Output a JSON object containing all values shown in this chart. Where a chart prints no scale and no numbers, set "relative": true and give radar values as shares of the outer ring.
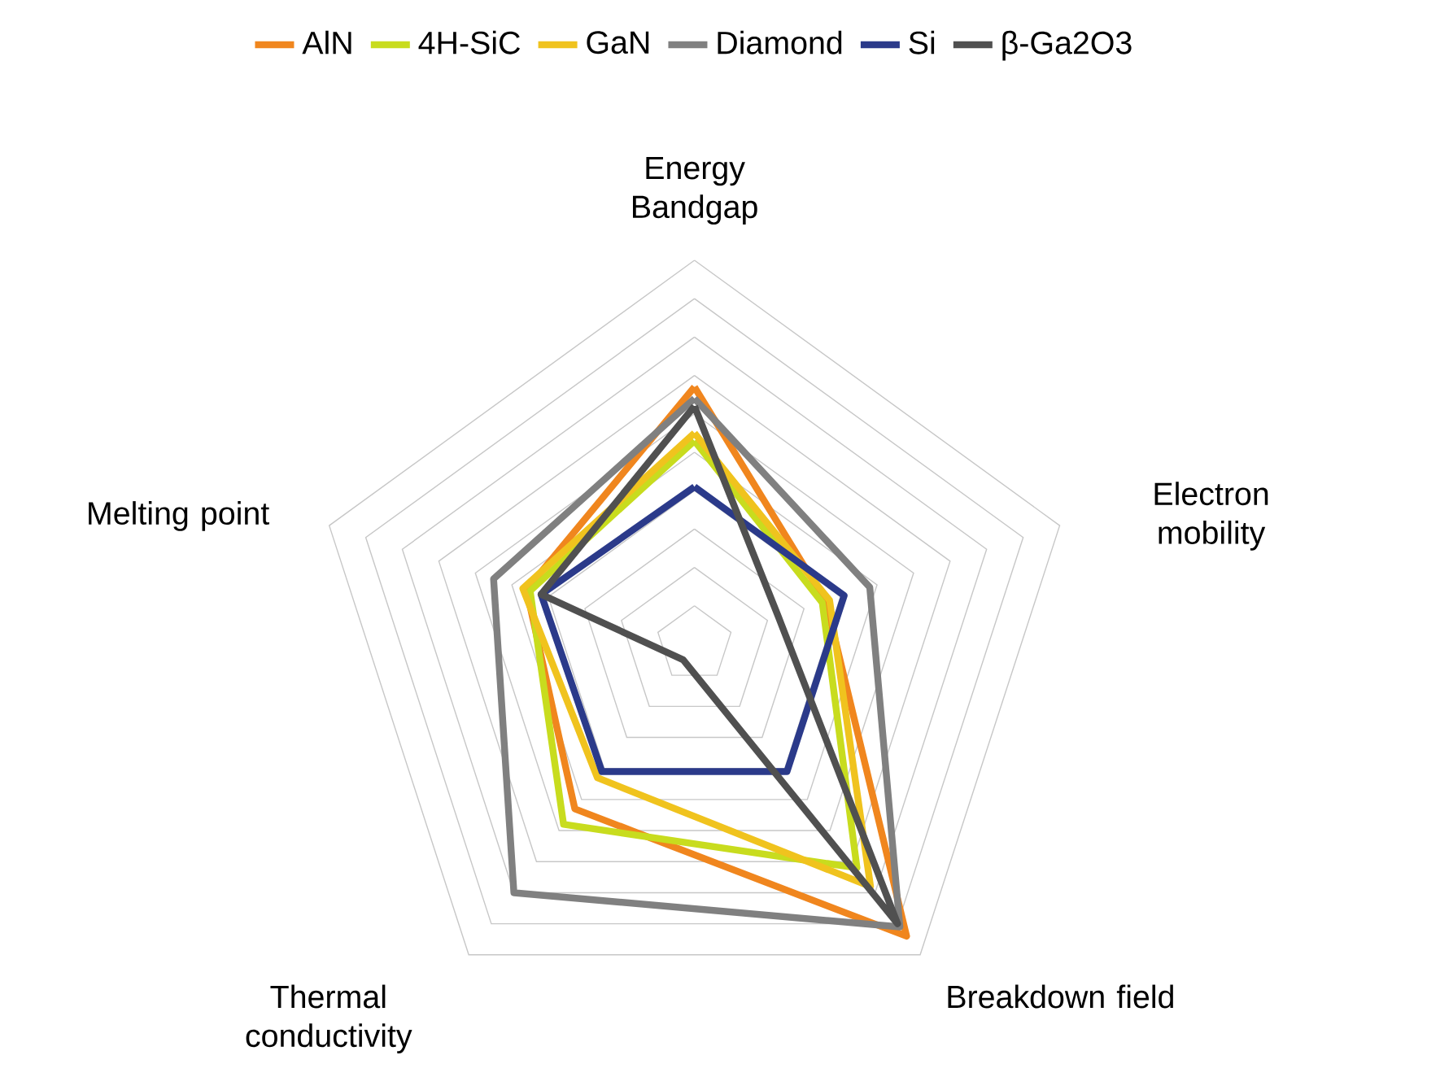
{
  "chart_data": {
    "type": "radar",
    "relative": true,
    "grid": true,
    "legend": "top",
    "categories": [
      "Energy Bandgap",
      "Electron mobility",
      "Breakdown field",
      "Thermal conductivity",
      "Melting point"
    ],
    "series": [
      {
        "name": "AlN",
        "color": "#f0861e",
        "values": [
          0.67,
          0.36,
          0.94,
          0.53,
          0.46
        ]
      },
      {
        "name": "4H-SiC",
        "color": "#c8dc1e",
        "values": [
          0.53,
          0.35,
          0.72,
          0.58,
          0.45
        ]
      },
      {
        "name": "GaN",
        "color": "#f0c31e",
        "values": [
          0.55,
          0.37,
          0.78,
          0.43,
          0.47
        ]
      },
      {
        "name": "Diamond",
        "color": "#808080",
        "values": [
          0.64,
          0.48,
          0.91,
          0.8,
          0.55
        ]
      },
      {
        "name": "Si",
        "color": "#2b3a8a",
        "values": [
          0.41,
          0.41,
          0.41,
          0.41,
          0.42
        ]
      },
      {
        "name": "β-Ga2O3",
        "color": "#505050",
        "values": [
          0.62,
          0.23,
          0.9,
          0.05,
          0.42
        ]
      }
    ]
  }
}
